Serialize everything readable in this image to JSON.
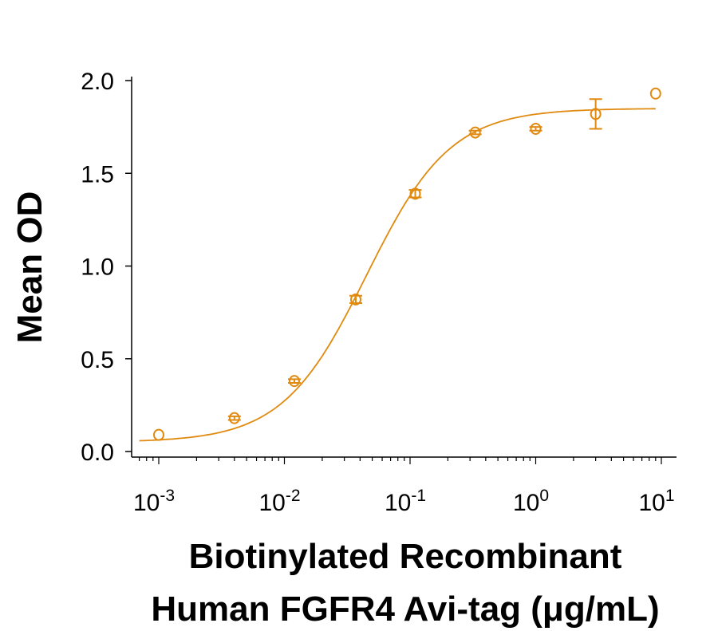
{
  "chart_data": {
    "type": "scatter",
    "title": "",
    "xlabel_lines": [
      "Biotinylated Recombinant",
      "Human FGFR4 Avi-tag (μg/mL)"
    ],
    "ylabel": "Mean OD",
    "xscale": "log",
    "xlim": [
      0.0007,
      12
    ],
    "ylim": [
      0,
      2.0
    ],
    "x_ticks": [
      {
        "value": 0.001,
        "base": "10",
        "exp": "-3"
      },
      {
        "value": 0.01,
        "base": "10",
        "exp": "-2"
      },
      {
        "value": 0.1,
        "base": "10",
        "exp": "-1"
      },
      {
        "value": 1,
        "base": "10",
        "exp": "0"
      },
      {
        "value": 10,
        "base": "10",
        "exp": "1"
      }
    ],
    "y_ticks": [
      {
        "value": 0,
        "label": "0.0"
      },
      {
        "value": 0.5,
        "label": "0.5"
      },
      {
        "value": 1.0,
        "label": "1.0"
      },
      {
        "value": 1.5,
        "label": "1.5"
      },
      {
        "value": 2.0,
        "label": "2.0"
      }
    ],
    "grid": false,
    "color": "#E08A10",
    "points": [
      {
        "x": 0.001,
        "y": 0.09,
        "yerr": 0.0
      },
      {
        "x": 0.004,
        "y": 0.18,
        "yerr": 0.01
      },
      {
        "x": 0.012,
        "y": 0.38,
        "yerr": 0.01
      },
      {
        "x": 0.037,
        "y": 0.82,
        "yerr": 0.02
      },
      {
        "x": 0.11,
        "y": 1.39,
        "yerr": 0.02
      },
      {
        "x": 0.33,
        "y": 1.72,
        "yerr": 0.01
      },
      {
        "x": 1.0,
        "y": 1.74,
        "yerr": 0.01
      },
      {
        "x": 3.0,
        "y": 1.82,
        "yerr": 0.08
      },
      {
        "x": 9.0,
        "y": 1.93,
        "yerr": 0.0
      }
    ],
    "fit_curve": {
      "model": "4PL",
      "bottom": 0.05,
      "top": 1.85,
      "ec50": 0.045,
      "hill": 1.3,
      "x_range": [
        0.0007,
        9.0
      ]
    }
  }
}
